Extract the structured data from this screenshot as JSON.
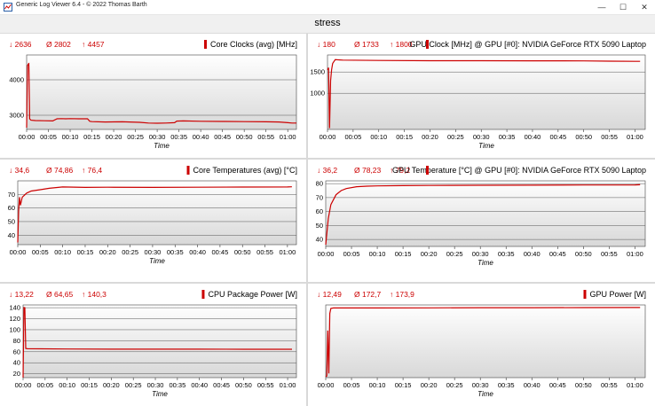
{
  "window": {
    "app_title": "Generic Log Viewer 6.4 - © 2022 Thomas Barth",
    "minimize": "—",
    "maximize": "☐",
    "close": "✕",
    "title": "stress"
  },
  "colors": {
    "series": "#cc0000",
    "plot_bg_top": "#ffffff",
    "plot_bg_bottom": "#d8d8d8",
    "grid": "#555555"
  },
  "chart_data": [
    {
      "type": "line",
      "title": "Core Clocks (avg) [MHz]",
      "stats": {
        "min": "2636",
        "avg": "2802",
        "max": "4457"
      },
      "xlabel": "Time",
      "x_ticks": [
        "00:00",
        "00:05",
        "00:10",
        "00:15",
        "00:20",
        "00:25",
        "00:30",
        "00:35",
        "00:40",
        "00:45",
        "00:50",
        "00:55",
        "01:00"
      ],
      "y_ticks": [
        3000,
        4000
      ],
      "xlim": [
        0,
        62
      ],
      "ylim": [
        2600,
        4700
      ],
      "series": [
        {
          "x": [
            0,
            0.2,
            0.4,
            0.5,
            0.7,
            1,
            2,
            4,
            6,
            7,
            8,
            9,
            10,
            12,
            14,
            14.5,
            15,
            18,
            22,
            26,
            28,
            30,
            32,
            34,
            34.5,
            36,
            40,
            45,
            50,
            55,
            58,
            60,
            61,
            62
          ],
          "values": [
            2650,
            4400,
            4450,
            4457,
            2900,
            2860,
            2850,
            2845,
            2840,
            2900,
            2905,
            2900,
            2905,
            2900,
            2900,
            2830,
            2820,
            2810,
            2815,
            2800,
            2780,
            2775,
            2780,
            2790,
            2835,
            2840,
            2830,
            2825,
            2820,
            2815,
            2810,
            2790,
            2780,
            2780
          ]
        }
      ]
    },
    {
      "type": "line",
      "title": "GPU Clock [MHz] @ GPU [#0]: NVIDIA GeForce RTX 5090 Laptop",
      "stats": {
        "min": "180",
        "avg": "1733",
        "max": "1800"
      },
      "xlabel": "Time",
      "x_ticks": [
        "00:00",
        "00:05",
        "00:10",
        "00:15",
        "00:20",
        "00:25",
        "00:30",
        "00:35",
        "00:40",
        "00:45",
        "00:50",
        "00:55",
        "01:00"
      ],
      "y_ticks": [
        1000,
        1500
      ],
      "xlim": [
        0,
        62
      ],
      "ylim": [
        150,
        1900
      ],
      "series": [
        {
          "x": [
            0,
            0.2,
            0.4,
            0.6,
            0.8,
            1,
            1.5,
            3,
            10,
            20,
            30,
            40,
            50,
            55,
            60,
            61
          ],
          "values": [
            1550,
            1600,
            180,
            1300,
            1550,
            1700,
            1790,
            1780,
            1770,
            1765,
            1765,
            1762,
            1760,
            1755,
            1750,
            1750
          ]
        }
      ]
    },
    {
      "type": "line",
      "title": "Core Temperatures (avg) [°C]",
      "stats": {
        "min": "34,6",
        "avg": "74,86",
        "max": "76,4"
      },
      "xlabel": "Time",
      "x_ticks": [
        "00:00",
        "00:05",
        "00:10",
        "00:15",
        "00:20",
        "00:25",
        "00:30",
        "00:35",
        "00:40",
        "00:45",
        "00:50",
        "00:55",
        "01:00"
      ],
      "y_ticks": [
        40,
        50,
        60,
        70
      ],
      "xlim": [
        0,
        62
      ],
      "ylim": [
        33,
        80
      ],
      "series": [
        {
          "x": [
            0,
            0.2,
            0.4,
            0.6,
            1,
            2,
            3,
            5,
            7,
            10,
            15,
            20,
            30,
            40,
            50,
            60,
            61
          ],
          "values": [
            34.6,
            58,
            68,
            62,
            68,
            71,
            72.5,
            73.5,
            74.5,
            75.5,
            75.2,
            75.3,
            75.2,
            75.3,
            75.4,
            75.5,
            75.6
          ]
        }
      ]
    },
    {
      "type": "line",
      "title": "GPU Temperature [°C] @ GPU [#0]: NVIDIA GeForce RTX 5090 Laptop",
      "stats": {
        "min": "36,2",
        "avg": "78,23",
        "max": "79,2"
      },
      "xlabel": "Time",
      "x_ticks": [
        "00:00",
        "00:05",
        "00:10",
        "00:15",
        "00:20",
        "00:25",
        "00:30",
        "00:35",
        "00:40",
        "00:45",
        "00:50",
        "00:55",
        "01:00"
      ],
      "y_ticks": [
        40,
        50,
        60,
        70,
        80
      ],
      "xlim": [
        0,
        62
      ],
      "ylim": [
        35,
        82
      ],
      "series": [
        {
          "x": [
            0,
            0.5,
            1,
            2,
            3,
            4,
            6,
            8,
            10,
            15,
            20,
            30,
            40,
            50,
            60,
            61
          ],
          "values": [
            36.2,
            55,
            65,
            72,
            75,
            76.5,
            77.8,
            78.2,
            78.4,
            78.6,
            78.7,
            78.8,
            78.9,
            79,
            79.1,
            79.2
          ]
        }
      ]
    },
    {
      "type": "line",
      "title": "CPU Package Power [W]",
      "stats": {
        "min": "13,22",
        "avg": "64,65",
        "max": "140,3"
      },
      "xlabel": "Time",
      "x_ticks": [
        "00:00",
        "00:05",
        "00:10",
        "00:15",
        "00:20",
        "00:25",
        "00:30",
        "00:35",
        "00:40",
        "00:45",
        "00:50",
        "00:55",
        "01:00"
      ],
      "y_ticks": [
        20,
        40,
        60,
        80,
        100,
        120,
        140
      ],
      "xlim": [
        0,
        62
      ],
      "ylim": [
        13,
        145
      ],
      "series": [
        {
          "x": [
            0,
            0.2,
            0.4,
            0.6,
            1,
            10,
            20,
            30,
            40,
            50,
            60,
            61
          ],
          "values": [
            13.2,
            140.3,
            140,
            66,
            65.5,
            65,
            64.7,
            64.6,
            64.6,
            64.5,
            64.5,
            64.5
          ]
        }
      ]
    },
    {
      "type": "line",
      "title": "GPU Power [W]",
      "stats": {
        "min": "12,49",
        "avg": "172,7",
        "max": "173,9"
      },
      "xlabel": "Time",
      "x_ticks": [
        "00:00",
        "00:05",
        "00:10",
        "00:15",
        "00:20",
        "00:25",
        "00:30",
        "00:35",
        "00:40",
        "00:45",
        "00:50",
        "00:55",
        "01:00"
      ],
      "y_ticks": [],
      "xlim": [
        0,
        62
      ],
      "ylim": [
        10,
        180
      ],
      "series": [
        {
          "x": [
            0,
            0.2,
            0.4,
            0.6,
            0.8,
            1,
            1.5,
            10,
            20,
            30,
            40,
            50,
            60,
            61
          ],
          "values": [
            12.5,
            14,
            120,
            20,
            160,
            172,
            173,
            173,
            173.2,
            173.5,
            173.6,
            173.8,
            173.9,
            173.9
          ]
        }
      ]
    }
  ]
}
